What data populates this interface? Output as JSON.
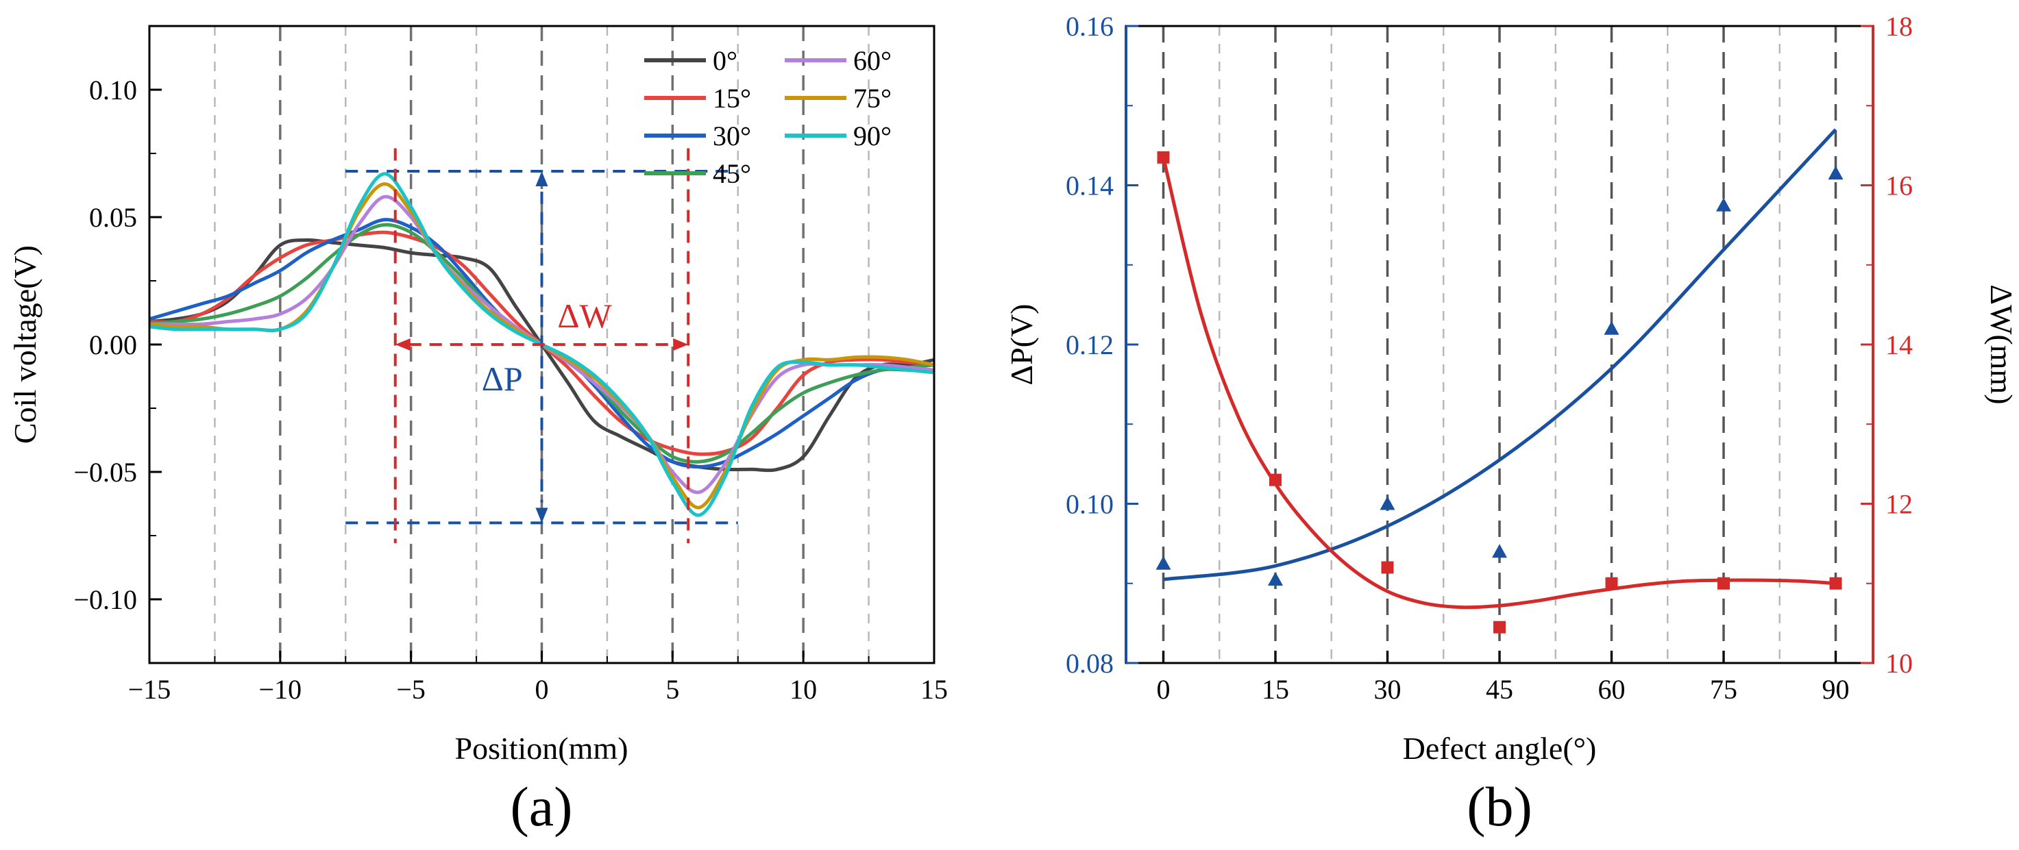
{
  "panel_labels": {
    "a": "(a)",
    "b": "(b)"
  },
  "chart_data": [
    {
      "type": "line",
      "panel": "(a)",
      "title": "",
      "xlabel": "Position(mm)",
      "ylabel": "Coil voltage(V)",
      "xlim": [
        -15,
        15
      ],
      "ylim": [
        -0.125,
        0.125
      ],
      "xticks": [
        -15,
        -10,
        -5,
        0,
        5,
        10,
        15
      ],
      "xtick_labels": [
        "−15",
        "−10",
        "−5",
        "0",
        "5",
        "10",
        "15"
      ],
      "yticks": [
        -0.1,
        -0.05,
        0.0,
        0.05,
        0.1
      ],
      "ytick_labels": [
        "−0.10",
        "−0.05",
        "0.00",
        "0.05",
        "0.10"
      ],
      "grid": "vertical dashed",
      "legend_position": "top-right",
      "annotations": {
        "dW": "ΔW",
        "dP": "ΔP"
      },
      "series": [
        {
          "name": "0°",
          "color": "#444444",
          "x": [
            -15,
            -14,
            -13,
            -12,
            -11,
            -10,
            -9,
            -8,
            -7,
            -6,
            -5,
            -4,
            -3,
            -2,
            -1,
            0,
            1,
            2,
            3,
            4,
            5,
            6,
            7,
            8,
            9,
            10,
            11,
            12,
            13,
            14,
            15
          ],
          "y": [
            0.009,
            0.01,
            0.012,
            0.017,
            0.027,
            0.039,
            0.041,
            0.04,
            0.039,
            0.038,
            0.036,
            0.035,
            0.034,
            0.03,
            0.015,
            0.0,
            -0.015,
            -0.03,
            -0.036,
            -0.041,
            -0.046,
            -0.048,
            -0.049,
            -0.049,
            -0.049,
            -0.044,
            -0.028,
            -0.013,
            -0.008,
            -0.008,
            -0.006
          ]
        },
        {
          "name": "15°",
          "color": "#e8443e",
          "x": [
            -15,
            -14,
            -13,
            -12,
            -11,
            -10,
            -9,
            -8,
            -7,
            -6,
            -5,
            -4,
            -3,
            -2,
            -1,
            0,
            1,
            2,
            3,
            4,
            5,
            6,
            7,
            8,
            9,
            10,
            11,
            12,
            13,
            14,
            15
          ],
          "y": [
            0.009,
            0.009,
            0.012,
            0.018,
            0.027,
            0.034,
            0.039,
            0.041,
            0.043,
            0.044,
            0.042,
            0.038,
            0.031,
            0.02,
            0.009,
            0.0,
            -0.009,
            -0.02,
            -0.03,
            -0.037,
            -0.041,
            -0.043,
            -0.042,
            -0.037,
            -0.025,
            -0.012,
            -0.007,
            -0.006,
            -0.006,
            -0.007,
            -0.008
          ]
        },
        {
          "name": "30°",
          "color": "#1f5fc8",
          "x": [
            -15,
            -14,
            -13,
            -12,
            -11,
            -10,
            -9,
            -8,
            -7,
            -6,
            -5,
            -4,
            -3,
            -2,
            -1,
            0,
            1,
            2,
            3,
            4,
            5,
            6,
            7,
            8,
            9,
            10,
            11,
            12,
            13,
            14,
            15
          ],
          "y": [
            0.01,
            0.013,
            0.016,
            0.019,
            0.024,
            0.029,
            0.036,
            0.041,
            0.045,
            0.049,
            0.046,
            0.039,
            0.028,
            0.016,
            0.006,
            0.0,
            -0.006,
            -0.016,
            -0.028,
            -0.039,
            -0.046,
            -0.048,
            -0.046,
            -0.041,
            -0.035,
            -0.028,
            -0.021,
            -0.014,
            -0.01,
            -0.01,
            -0.01
          ]
        },
        {
          "name": "45°",
          "color": "#3f9e55",
          "x": [
            -15,
            -14,
            -13,
            -12,
            -11,
            -10,
            -9,
            -8,
            -7,
            -6,
            -5,
            -4,
            -3,
            -2,
            -1,
            0,
            1,
            2,
            3,
            4,
            5,
            6,
            7,
            8,
            9,
            10,
            11,
            12,
            13,
            14,
            15
          ],
          "y": [
            0.008,
            0.009,
            0.01,
            0.012,
            0.015,
            0.019,
            0.026,
            0.035,
            0.043,
            0.047,
            0.044,
            0.036,
            0.026,
            0.015,
            0.006,
            0.0,
            -0.006,
            -0.015,
            -0.026,
            -0.036,
            -0.044,
            -0.046,
            -0.043,
            -0.035,
            -0.026,
            -0.019,
            -0.015,
            -0.012,
            -0.01,
            -0.009,
            -0.008
          ]
        },
        {
          "name": "60°",
          "color": "#b57fdc",
          "x": [
            -15,
            -14,
            -13,
            -12,
            -11,
            -10,
            -9,
            -8,
            -7,
            -6,
            -5,
            -4,
            -3,
            -2,
            -1,
            0,
            1,
            2,
            3,
            4,
            5,
            6,
            7,
            8,
            9,
            10,
            11,
            12,
            13,
            14,
            15
          ],
          "y": [
            0.008,
            0.008,
            0.008,
            0.009,
            0.01,
            0.012,
            0.018,
            0.03,
            0.047,
            0.058,
            0.05,
            0.035,
            0.024,
            0.015,
            0.007,
            0.0,
            -0.007,
            -0.015,
            -0.024,
            -0.035,
            -0.05,
            -0.058,
            -0.047,
            -0.028,
            -0.013,
            -0.008,
            -0.008,
            -0.008,
            -0.008,
            -0.009,
            -0.01
          ]
        },
        {
          "name": "75°",
          "color": "#c8960c",
          "x": [
            -15,
            -14,
            -13,
            -12,
            -11,
            -10,
            -9,
            -8,
            -7,
            -6,
            -5,
            -4,
            -3,
            -2,
            -1,
            0,
            1,
            2,
            3,
            4,
            5,
            6,
            7,
            8,
            9,
            10,
            11,
            12,
            13,
            14,
            15
          ],
          "y": [
            0.008,
            0.007,
            0.007,
            0.006,
            0.006,
            0.006,
            0.013,
            0.03,
            0.052,
            0.063,
            0.052,
            0.035,
            0.023,
            0.013,
            0.006,
            0.0,
            -0.006,
            -0.013,
            -0.023,
            -0.035,
            -0.052,
            -0.064,
            -0.05,
            -0.027,
            -0.01,
            -0.006,
            -0.006,
            -0.005,
            -0.005,
            -0.006,
            -0.008
          ]
        },
        {
          "name": "90°",
          "color": "#19c3c8",
          "x": [
            -15,
            -14,
            -13,
            -12,
            -11,
            -10,
            -9,
            -8,
            -7,
            -6,
            -5,
            -4,
            -3,
            -2,
            -1,
            0,
            1,
            2,
            3,
            4,
            5,
            6,
            7,
            8,
            9,
            10,
            11,
            12,
            13,
            14,
            15
          ],
          "y": [
            0.007,
            0.006,
            0.006,
            0.006,
            0.006,
            0.006,
            0.012,
            0.03,
            0.054,
            0.067,
            0.054,
            0.035,
            0.022,
            0.012,
            0.005,
            0.0,
            -0.005,
            -0.012,
            -0.022,
            -0.035,
            -0.054,
            -0.067,
            -0.052,
            -0.025,
            -0.009,
            -0.007,
            -0.008,
            -0.008,
            -0.009,
            -0.01,
            -0.011
          ]
        }
      ]
    },
    {
      "type": "scatter",
      "panel": "(b)",
      "title": "",
      "xlabel": "Defect angle(°)",
      "ylabel": "ΔP(V)",
      "y2label": "ΔW(mm)",
      "xlim": [
        -5,
        95
      ],
      "ylim": [
        0.08,
        0.16
      ],
      "y2lim": [
        10,
        18
      ],
      "xticks": [
        0,
        15,
        30,
        45,
        60,
        75,
        90
      ],
      "xtick_labels": [
        "0",
        "15",
        "30",
        "45",
        "60",
        "75",
        "90"
      ],
      "yticks": [
        0.08,
        0.1,
        0.12,
        0.14,
        0.16
      ],
      "ytick_labels": [
        "0.08",
        "0.10",
        "0.12",
        "0.14",
        "0.16"
      ],
      "y2ticks": [
        10,
        12,
        14,
        16,
        18
      ],
      "y2tick_labels": [
        "10",
        "12",
        "14",
        "16",
        "18"
      ],
      "grid": "vertical dashed",
      "series": [
        {
          "name": "ΔP",
          "axis": "left",
          "marker": "triangle",
          "color": "#1a50a0",
          "x": [
            0,
            15,
            30,
            45,
            60,
            75,
            90
          ],
          "y": [
            0.0925,
            0.0905,
            0.1,
            0.094,
            0.122,
            0.1375,
            0.1415
          ]
        },
        {
          "name": "ΔP fit",
          "axis": "left",
          "marker": "none",
          "color": "#1a50a0",
          "x": [
            0,
            15,
            30,
            45,
            60,
            75,
            90
          ],
          "y": [
            0.0905,
            0.0922,
            0.0972,
            0.1055,
            0.117,
            0.1319,
            0.147
          ]
        },
        {
          "name": "ΔW",
          "axis": "right",
          "marker": "square",
          "color": "#d42a2a",
          "x": [
            0,
            15,
            30,
            45,
            60,
            75,
            90
          ],
          "y": [
            16.35,
            12.3,
            11.2,
            10.45,
            11.0,
            11.0,
            11.0
          ]
        },
        {
          "name": "ΔW fit",
          "axis": "right",
          "marker": "none",
          "color": "#d42a2a",
          "x": [
            0,
            5,
            10,
            15,
            20,
            25,
            30,
            35,
            40,
            45,
            50,
            55,
            60,
            65,
            70,
            75,
            80,
            85,
            90
          ],
          "y": [
            16.35,
            14.4,
            13.1,
            12.25,
            11.65,
            11.2,
            10.9,
            10.75,
            10.7,
            10.72,
            10.78,
            10.86,
            10.93,
            10.99,
            11.03,
            11.04,
            11.04,
            11.03,
            11.0
          ]
        }
      ]
    }
  ]
}
